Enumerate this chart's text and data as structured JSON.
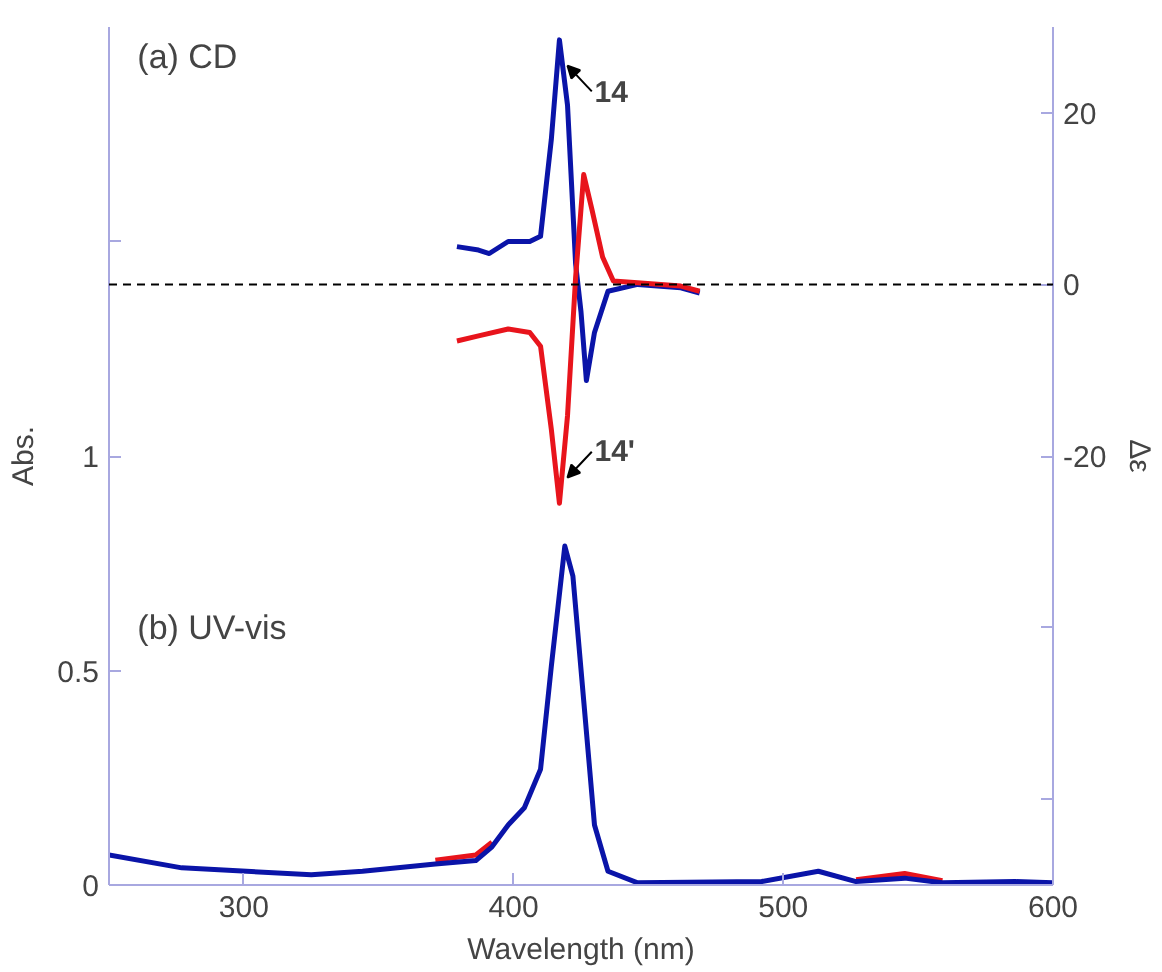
{
  "chart_data": {
    "type": "line",
    "xlabel": "Wavelength (nm)",
    "ylabel": "Abs.",
    "y2label": "Δε",
    "annotations": [
      "(a) CD",
      "(b) UV-vis"
    ],
    "xlim": [
      250,
      600
    ],
    "xticks": [
      300,
      400,
      500,
      600
    ],
    "ylim": [
      0,
      2
    ],
    "yticks": [
      0,
      0.5,
      1,
      {
        "value": 1.5,
        "label": null
      }
    ],
    "y2lim": [
      -70,
      30
    ],
    "y2ticks": [
      {
        "value": -60,
        "label": null
      },
      {
        "value": -40,
        "label": null
      },
      -20,
      0,
      20
    ],
    "grid": false,
    "marker": "none",
    "line_style": "solid",
    "ref_lines": [
      {
        "axis": "y2",
        "value": 0,
        "label": null,
        "color": "#000000",
        "line_style": "dashed"
      }
    ],
    "series": [
      {
        "name": "14",
        "axis": "y2",
        "color": "#0a14a8",
        "x": [
          379,
          387,
          391,
          398,
          406,
          410,
          414,
          417,
          420,
          423,
          425,
          427,
          430,
          435,
          446,
          462,
          469
        ],
        "values": [
          4.4,
          4.0,
          3.6,
          5.0,
          5.0,
          5.6,
          16.9,
          28.5,
          20.9,
          2.4,
          -3.2,
          -11.2,
          -5.6,
          -0.8,
          0,
          -0.4,
          -1.0
        ]
      },
      {
        "name": "14'",
        "axis": "y2",
        "color": "#e8141c",
        "x": [
          379,
          387,
          398,
          406,
          410,
          414,
          417,
          420,
          423,
          426,
          429,
          433,
          437,
          446,
          462,
          469
        ],
        "values": [
          -6.6,
          -6.0,
          -5.2,
          -5.6,
          -7.2,
          -16.9,
          -25.5,
          -15.3,
          0.8,
          12.8,
          8.8,
          3.2,
          0.4,
          0.2,
          -0.2,
          -0.8
        ]
      },
      {
        "color": "#e8141c",
        "x": [
          371,
          386,
          392
        ],
        "values": [
          0.058,
          0.07,
          0.1
        ]
      },
      {
        "color": "#e8141c",
        "x": [
          527,
          545,
          559
        ],
        "values": [
          0.012,
          0.027,
          0.01
        ]
      },
      {
        "color": "#0a14a8",
        "x": [
          250,
          277,
          325,
          344,
          371,
          386,
          392,
          398,
          404,
          410,
          414,
          419,
          422,
          426,
          430,
          435,
          446,
          492,
          513,
          527,
          545,
          559,
          586,
          600
        ],
        "values": [
          0.07,
          0.04,
          0.024,
          0.032,
          0.049,
          0.057,
          0.089,
          0.14,
          0.18,
          0.27,
          0.51,
          0.79,
          0.72,
          0.43,
          0.14,
          0.032,
          0.005,
          0.008,
          0.032,
          0.008,
          0.016,
          0.005,
          0.008,
          0.005
        ]
      }
    ]
  }
}
